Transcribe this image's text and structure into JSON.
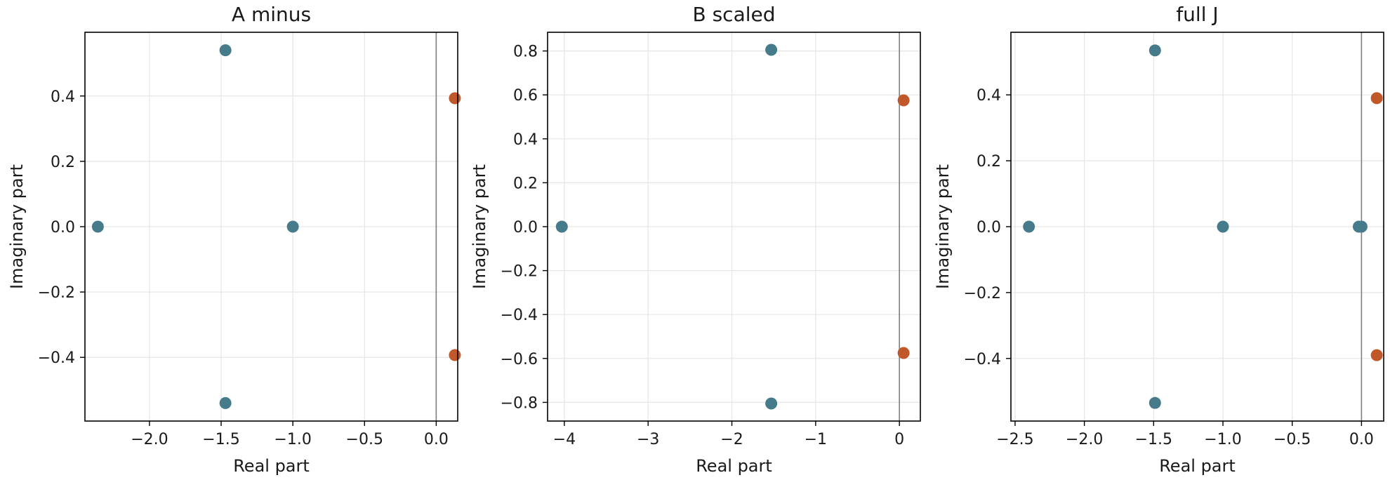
{
  "colors": {
    "stable": "#457b8a",
    "unstable": "#c1582a",
    "grid": "#e6e6e6",
    "zero_line": "#7f7f7f",
    "frame": "#000000"
  },
  "chart_data": [
    {
      "type": "scatter",
      "title": "A minus",
      "xlabel": "Real part",
      "ylabel": "Imaginary part",
      "xlim": [
        -2.45,
        0.15
      ],
      "ylim": [
        -0.595,
        0.595
      ],
      "xticks": [
        -2.0,
        -1.5,
        -1.0,
        -0.5,
        0.0
      ],
      "xtick_labels": [
        "−2.0",
        "−1.5",
        "−1.0",
        "−0.5",
        "0.0"
      ],
      "yticks": [
        -0.4,
        -0.2,
        0.0,
        0.2,
        0.4
      ],
      "ytick_labels": [
        "−0.4",
        "−0.2",
        "0.0",
        "0.2",
        "0.4"
      ],
      "grid": true,
      "points": [
        {
          "x": -2.36,
          "y": 0.0,
          "group": "stable"
        },
        {
          "x": -1.47,
          "y": 0.54,
          "group": "stable"
        },
        {
          "x": -1.47,
          "y": -0.54,
          "group": "stable"
        },
        {
          "x": -1.0,
          "y": 0.0,
          "group": "stable"
        },
        {
          "x": 0.13,
          "y": 0.393,
          "group": "unstable"
        },
        {
          "x": 0.13,
          "y": -0.393,
          "group": "unstable"
        }
      ]
    },
    {
      "type": "scatter",
      "title": "B scaled",
      "xlabel": "Real part",
      "ylabel": "Imaginary part",
      "xlim": [
        -4.2,
        0.25
      ],
      "ylim": [
        -0.885,
        0.885
      ],
      "xticks": [
        -4,
        -3,
        -2,
        -1,
        0
      ],
      "xtick_labels": [
        "−4",
        "−3",
        "−2",
        "−1",
        "0"
      ],
      "yticks": [
        -0.8,
        -0.6,
        -0.4,
        -0.2,
        0.0,
        0.2,
        0.4,
        0.6,
        0.8
      ],
      "ytick_labels": [
        "−0.8",
        "−0.6",
        "−0.4",
        "−0.2",
        "0.0",
        "0.2",
        "0.4",
        "0.6",
        "0.8"
      ],
      "grid": true,
      "points": [
        {
          "x": -4.03,
          "y": 0.0,
          "group": "stable"
        },
        {
          "x": -1.53,
          "y": 0.805,
          "group": "stable"
        },
        {
          "x": -1.53,
          "y": -0.805,
          "group": "stable"
        },
        {
          "x": 0.05,
          "y": 0.575,
          "group": "unstable"
        },
        {
          "x": 0.05,
          "y": -0.575,
          "group": "unstable"
        }
      ]
    },
    {
      "type": "scatter",
      "title": "full J",
      "xlabel": "Real part",
      "ylabel": "Imaginary part",
      "xlim": [
        -2.53,
        0.16
      ],
      "ylim": [
        -0.59,
        0.59
      ],
      "xticks": [
        -2.5,
        -2.0,
        -1.5,
        -1.0,
        -0.5,
        0.0
      ],
      "xtick_labels": [
        "−2.5",
        "−2.0",
        "−1.5",
        "−1.0",
        "−0.5",
        "0.0"
      ],
      "yticks": [
        -0.4,
        -0.2,
        0.0,
        0.2,
        0.4
      ],
      "ytick_labels": [
        "−0.4",
        "−0.2",
        "0.0",
        "0.2",
        "0.4"
      ],
      "grid": true,
      "points": [
        {
          "x": -2.4,
          "y": 0.0,
          "group": "stable"
        },
        {
          "x": -1.49,
          "y": 0.535,
          "group": "stable"
        },
        {
          "x": -1.49,
          "y": -0.535,
          "group": "stable"
        },
        {
          "x": -1.0,
          "y": 0.0,
          "group": "stable"
        },
        {
          "x": -0.02,
          "y": 0.0,
          "group": "stable"
        },
        {
          "x": 0.0,
          "y": 0.0,
          "group": "stable"
        },
        {
          "x": 0.11,
          "y": 0.39,
          "group": "unstable"
        },
        {
          "x": 0.11,
          "y": -0.39,
          "group": "unstable"
        }
      ]
    }
  ]
}
